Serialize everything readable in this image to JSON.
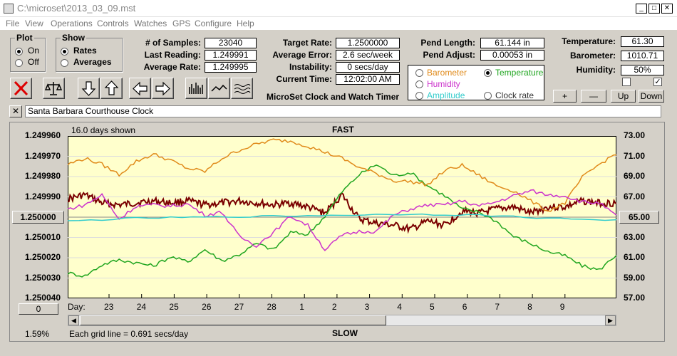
{
  "window": {
    "title": "C:\\microset\\2013_03_09.mst"
  },
  "menu": [
    "File",
    "View",
    "Operations",
    "Controls",
    "Watches",
    "GPS",
    "Configure",
    "Help"
  ],
  "plot": {
    "legend": "Plot",
    "on": "On",
    "off": "Off"
  },
  "show": {
    "legend": "Show",
    "rates": "Rates",
    "averages": "Averages"
  },
  "stats": {
    "samples_label": "# of Samples:",
    "samples": "23040",
    "last_label": "Last Reading:",
    "last": "1.249991",
    "avg_label": "Average Rate:",
    "avg": "1.249995",
    "target_label": "Target Rate:",
    "target": "1.2500000",
    "error_label": "Average Error:",
    "error": "2.6 sec/week",
    "instab_label": "Instability:",
    "instab": "0 secs/day",
    "time_label": "Current Time:",
    "time": "12:02:00 AM",
    "pendlen_label": "Pend Length:",
    "pendlen": "61.144 in",
    "pendadj_label": "Pend Adjust:",
    "pendadj": "0.00053 in",
    "temp_label": "Temperature:",
    "temp": "61.30",
    "baro_label": "Barometer:",
    "baro": "1010.71",
    "hum_label": "Humidity:",
    "hum": "50%"
  },
  "app_caption": "MicroSet Clock and Watch Timer",
  "series_select": {
    "barometer": "Barometer",
    "temperature": "Temperature",
    "humidity": "Humidity",
    "amplitude": "Amplitude",
    "clockrate": "Clock rate"
  },
  "small_buttons": {
    "plus": "+",
    "minus": "—",
    "up": "Up",
    "down": "Down"
  },
  "watch_name": "Santa Barbara Courthouse Clock",
  "graph": {
    "days_shown": "16.0 days shown",
    "fast": "FAST",
    "slow": "SLOW",
    "grid_note": "Each grid line = 0.691 secs/day",
    "percent": "1.59%",
    "day_label": "Day:",
    "center_left": "1.250000",
    "center_right": "65.00",
    "zero_btn": "0"
  },
  "colors": {
    "plot_bg": "#ffffcc",
    "rate": "#7a0000",
    "temperature": "#1fa51f",
    "barometer": "#e08a1a",
    "humidity": "#cc33cc",
    "amplitude": "#33cccc"
  },
  "chart_data": {
    "type": "line",
    "left_axis_ticks": [
      "1.249960",
      "1.249970",
      "1.249980",
      "1.249990",
      "1.250000",
      "1.250010",
      "1.250020",
      "1.250030",
      "1.250040"
    ],
    "right_axis_ticks": [
      "73.00",
      "71.00",
      "69.00",
      "67.00",
      "65.00",
      "63.00",
      "61.00",
      "59.00",
      "57.00"
    ],
    "x_ticks": [
      "23",
      "24",
      "25",
      "26",
      "27",
      "28",
      "1",
      "2",
      "3",
      "4",
      "5",
      "6",
      "7",
      "8",
      "9"
    ],
    "ylim_left": [
      1.24996,
      1.25004
    ],
    "ylim_right": [
      57,
      73
    ],
    "series": [
      {
        "key": "rate",
        "x": [
          0,
          0.5,
          1,
          1.5,
          2,
          2.5,
          3,
          3.5,
          4,
          4.5,
          5,
          5.5,
          6,
          6.5,
          7,
          7.5,
          8,
          8.5,
          9,
          9.5,
          10,
          10.5,
          11,
          11.5,
          12,
          12.5,
          13,
          13.5,
          14,
          14.5,
          15,
          15.5,
          16
        ],
        "y": [
          1.249991,
          1.249989,
          1.249993,
          1.249994,
          1.249993,
          1.249992,
          1.249993,
          1.249992,
          1.249994,
          1.249993,
          1.249992,
          1.249993,
          1.249994,
          1.249993,
          1.249995,
          1.249998,
          1.249989,
          1.250001,
          1.250003,
          1.250004,
          1.250006,
          1.250002,
          1.250004,
          1.249997,
          1.249998,
          1.249996,
          1.249995,
          1.249998,
          1.249995,
          1.249995,
          1.249992,
          1.249993,
          1.249993
        ]
      },
      {
        "key": "temperature",
        "x": [
          0,
          0.5,
          1,
          1.5,
          2,
          2.5,
          3,
          3.5,
          4,
          4.5,
          5,
          5.5,
          6,
          6.5,
          7,
          7.5,
          8,
          8.5,
          9,
          9.5,
          10,
          10.5,
          11,
          11.5,
          12,
          12.5,
          13,
          13.5,
          14,
          14.5,
          15,
          15.5,
          16
        ],
        "y": [
          59.5,
          59.2,
          60.3,
          60.8,
          60.5,
          60.2,
          61.1,
          60.6,
          61.8,
          60.7,
          61.3,
          62.4,
          61.8,
          63.5,
          63.3,
          65.1,
          67.5,
          69.2,
          70.2,
          69.1,
          69.4,
          68.1,
          67.1,
          65.8,
          65.5,
          64.6,
          63.1,
          62.4,
          61.6,
          61.2,
          60.2,
          59.8,
          61.3
        ]
      },
      {
        "key": "barometer",
        "x": [
          0,
          0.5,
          1,
          1.5,
          2,
          2.5,
          3,
          3.5,
          4,
          4.5,
          5,
          5.5,
          6,
          6.5,
          7,
          7.5,
          8,
          8.5,
          9,
          9.5,
          10,
          10.5,
          11,
          11.5,
          12,
          12.5,
          13,
          13.5,
          14,
          14.5,
          15,
          15.5,
          16
        ],
        "y": [
          70.2,
          70.8,
          70.2,
          69.2,
          70.5,
          71.2,
          70.6,
          69.8,
          69.5,
          70.8,
          71.6,
          72.2,
          72.6,
          72.5,
          72.0,
          71.4,
          70.8,
          69.9,
          69.3,
          68.6,
          68.5,
          68.2,
          69.6,
          70.1,
          69.1,
          68.1,
          67.6,
          66.6,
          65.6,
          66.4,
          68.9,
          70.2,
          71.3
        ]
      },
      {
        "key": "humidity",
        "x": [
          0,
          0.5,
          1,
          1.5,
          2,
          2.5,
          3,
          3.5,
          4,
          4.5,
          5,
          5.5,
          6,
          6.5,
          7,
          7.5,
          8,
          8.5,
          9,
          9.5,
          10,
          10.5,
          11,
          11.5,
          12,
          12.5,
          13,
          13.5,
          14,
          14.5,
          15,
          15.5,
          16
        ],
        "y": [
          65.8,
          66.2,
          67.2,
          64.8,
          66.1,
          66.2,
          66.1,
          66.3,
          65.2,
          65.5,
          63.1,
          62.2,
          63.5,
          65.1,
          64.2,
          61.8,
          63.2,
          63.6,
          63.6,
          65.2,
          65.8,
          66.2,
          66.2,
          66.6,
          66.1,
          66.5,
          67.1,
          67.6,
          67.2,
          67.1,
          66.5,
          66.4,
          65.1
        ]
      },
      {
        "key": "amplitude",
        "x": [
          0,
          2,
          4,
          6,
          8,
          10,
          12,
          14,
          16
        ],
        "y": [
          64.6,
          64.9,
          65.0,
          65.1,
          65.2,
          65.3,
          65.2,
          64.9,
          64.7
        ]
      }
    ]
  }
}
